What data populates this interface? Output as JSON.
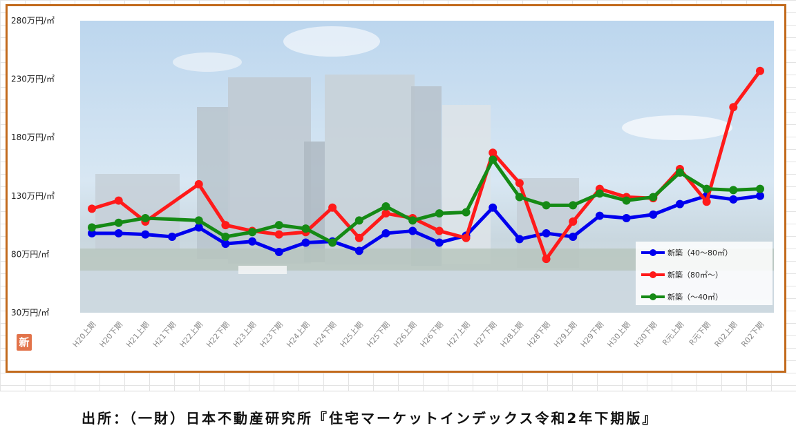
{
  "source_text": "出所：（一財）日本不動産研究所『住宅マーケットインデックス令和2年下期版』",
  "logo_text": "新",
  "chart_data": {
    "type": "line",
    "title": "",
    "xlabel": "",
    "ylabel": "",
    "ylim": [
      30,
      280
    ],
    "yticks": [
      30,
      80,
      130,
      180,
      230,
      280
    ],
    "ytick_labels": [
      "30万円/㎡",
      "80万円/㎡",
      "130万円/㎡",
      "180万円/㎡",
      "230万円/㎡",
      "280万円/㎡"
    ],
    "grid": false,
    "legend_position": "bottom-right",
    "categories": [
      "H20上期",
      "H20下期",
      "H21上期",
      "H21下期",
      "H22上期",
      "H22下期",
      "H23上期",
      "H23下期",
      "H24上期",
      "H24下期",
      "H25上期",
      "H25下期",
      "H26上期",
      "H26下期",
      "H27上期",
      "H27下期",
      "H28上期",
      "H28下期",
      "H29上期",
      "H29下期",
      "H30上期",
      "H30下期",
      "R元上期",
      "R元下期",
      "R02上期",
      "R02下期"
    ],
    "series": [
      {
        "name": "新築（40～80㎡）",
        "color": "#0000ee",
        "values": [
          98,
          98,
          97,
          95,
          103,
          89,
          91,
          82,
          90,
          91,
          83,
          98,
          100,
          90,
          96,
          120,
          93,
          98,
          95,
          113,
          111,
          114,
          123,
          130,
          127,
          130
        ]
      },
      {
        "name": "新築（80㎡～）",
        "color": "#ff1a1a",
        "values": [
          119,
          126,
          108,
          null,
          140,
          105,
          100,
          97,
          99,
          120,
          94,
          115,
          111,
          100,
          94,
          167,
          141,
          76,
          108,
          136,
          129,
          128,
          153,
          125,
          206,
          237
        ]
      },
      {
        "name": "新築（～40㎡）",
        "color": "#158a15",
        "values": [
          103,
          107,
          111,
          null,
          109,
          95,
          99,
          105,
          102,
          90,
          109,
          121,
          109,
          115,
          116,
          161,
          129,
          122,
          122,
          132,
          126,
          129,
          150,
          136,
          135,
          136
        ]
      }
    ]
  }
}
